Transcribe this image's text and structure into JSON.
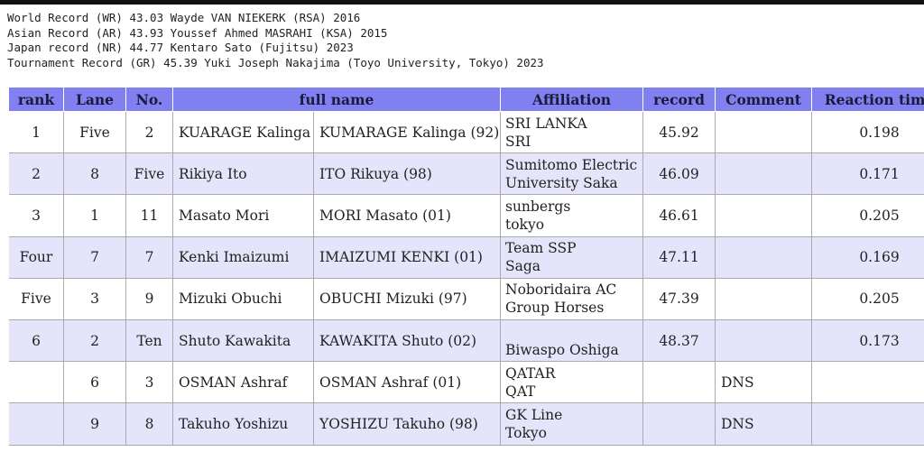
{
  "records": [
    "World Record (WR) 43.03 Wayde VAN NIEKERK (RSA) 2016",
    "Asian Record (AR) 43.93 Youssef Ahmed MASRAHI (KSA) 2015",
    "Japan record (NR) 44.77 Kentaro Sato (Fujitsu) 2023",
    "Tournament Record (GR) 45.39 Yuki Joseph Nakajima (Toyo University, Tokyo) 2023"
  ],
  "table": {
    "headers": [
      "rank",
      "Lane",
      "No.",
      "full name",
      "Affiliation",
      "record",
      "Comment",
      "Reaction time"
    ],
    "rows": [
      {
        "rank": "1",
        "lane": "Five",
        "no": "2",
        "name": "KUARAGE Kalinga",
        "name_en": "KUMARAGE Kalinga (92)",
        "affiliation": [
          "SRI LANKA",
          "SRI"
        ],
        "record": "45.92",
        "reaction": "0.198"
      },
      {
        "rank": "2",
        "lane": "8",
        "no": "Five",
        "name": "Rikiya Ito",
        "name_en": "ITO Rikuya (98)",
        "affiliation": [
          "Sumitomo Electric",
          "University Saka"
        ],
        "record": "46.09",
        "reaction": "0.171"
      },
      {
        "rank": "3",
        "lane": "1",
        "no": "11",
        "name": "Masato Mori",
        "name_en": "MORI Masato (01)",
        "affiliation": [
          "sunbergs",
          "tokyo"
        ],
        "record": "46.61",
        "reaction": "0.205"
      },
      {
        "rank": "Four",
        "lane": "7",
        "no": "7",
        "name": "Kenki Imaizumi",
        "name_en": "IMAIZUMI KENKI (01)",
        "affiliation": [
          "Team SSP",
          "Saga"
        ],
        "record": "47.11",
        "reaction": "0.169"
      },
      {
        "rank": "Five",
        "lane": "3",
        "no": "9",
        "name": "Mizuki Obuchi",
        "name_en": "OBUCHI Mizuki (97)",
        "affiliation": [
          "Noboridaira AC",
          "Group Horses"
        ],
        "record": "47.39",
        "reaction": "0.205"
      },
      {
        "rank": "6",
        "lane": "2",
        "no": "Ten",
        "name": "Shuto Kawakita",
        "name_en": "KAWAKITA Shuto (02)",
        "affiliation": [
          "Biwaspo Oshiga"
        ],
        "record": "48.37",
        "reaction": "0.173"
      },
      {
        "lane": "6",
        "no": "3",
        "name": "OSMAN Ashraf",
        "name_en": "OSMAN Ashraf (01)",
        "affiliation": [
          "QATAR",
          "QAT"
        ],
        "comment": "DNS"
      },
      {
        "lane": "9",
        "no": "8",
        "name": "Takuho Yoshizu",
        "name_en": "YOSHIZU Takuho (98)",
        "affiliation": [
          "GK Line",
          "Tokyo"
        ],
        "comment": "DNS"
      }
    ]
  }
}
